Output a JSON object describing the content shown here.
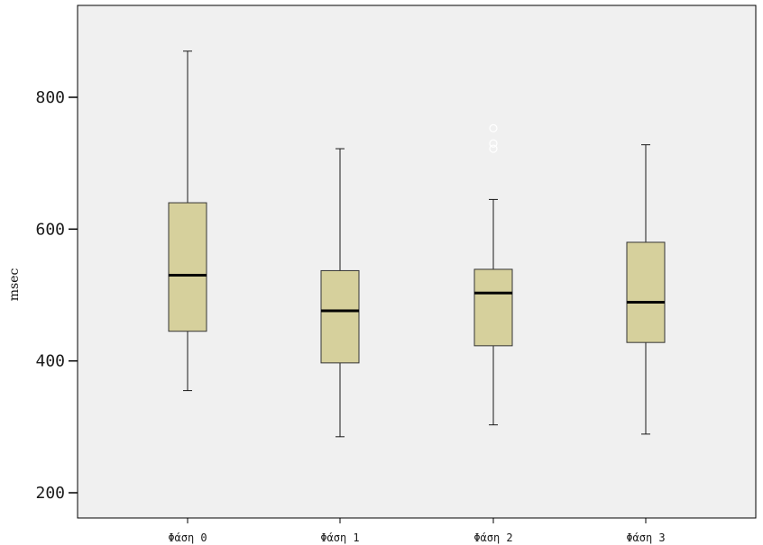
{
  "chart_data": {
    "type": "boxplot",
    "title": "",
    "xlabel": "",
    "ylabel": "msec",
    "ylim": [
      175,
      935
    ],
    "yticks": [
      200,
      400,
      600,
      800
    ],
    "grid": false,
    "legend": "none",
    "colors": {
      "plot_background": "#f0f0f0",
      "box_fill": "#d6d09c",
      "box_stroke": "#333333",
      "median": "#000000",
      "whisker": "#1a1a1a",
      "outlier": "#ffffff"
    },
    "categories": [
      "Φάση 0",
      "Φάση 1",
      "Φάση 2",
      "Φάση 3"
    ],
    "boxes": [
      {
        "category": "Φάση 0",
        "whisker_low": 355,
        "q1": 445,
        "median": 530,
        "q3": 640,
        "whisker_high": 870,
        "outliers": []
      },
      {
        "category": "Φάση 1",
        "whisker_low": 285,
        "q1": 397,
        "median": 476,
        "q3": 537,
        "whisker_high": 722,
        "outliers": []
      },
      {
        "category": "Φάση 2",
        "whisker_low": 303,
        "q1": 423,
        "median": 503,
        "q3": 539,
        "whisker_high": 645,
        "outliers": [
          753,
          730,
          722
        ]
      },
      {
        "category": "Φάση 3",
        "whisker_low": 289,
        "q1": 428,
        "median": 489,
        "q3": 580,
        "whisker_high": 728,
        "outliers": []
      }
    ]
  }
}
